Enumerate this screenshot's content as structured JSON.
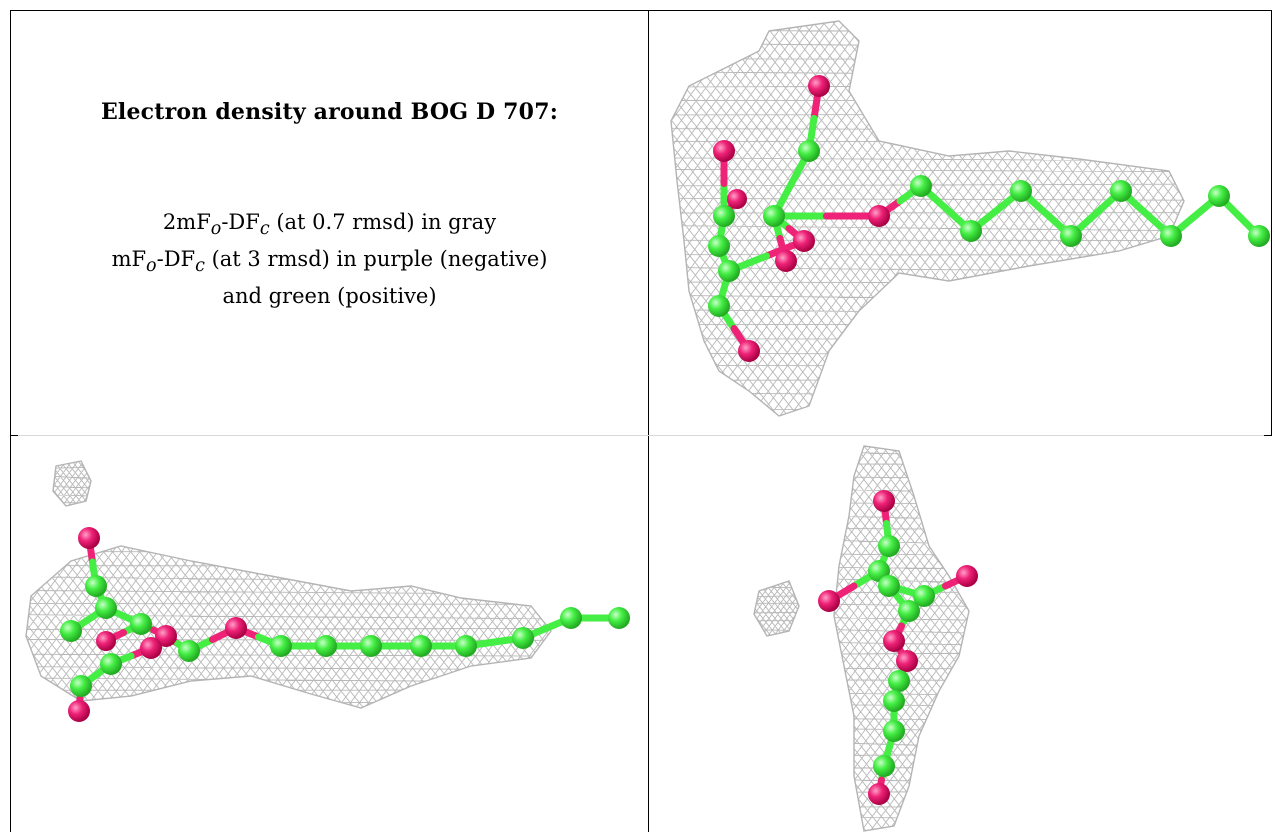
{
  "text_panel": {
    "title": "Electron density around BOG D 707:",
    "line1": {
      "prefix": "2mF",
      "sub1": "o",
      "mid": "-DF",
      "sub2": "c",
      "suffix": " (at 0.7 rmsd) in gray"
    },
    "line2": {
      "prefix": "mF",
      "sub1": "o",
      "mid": "-DF",
      "sub2": "c",
      "suffix": " (at 3 rmsd) in purple (negative)"
    },
    "line3": "and green (positive)"
  },
  "colors": {
    "mesh": "#b4b4b4",
    "carbon": "#44ee44",
    "oxygen": "#ee2277",
    "border": "#000000"
  },
  "panels": [
    {
      "name": "view-top-right"
    },
    {
      "name": "view-bottom-left"
    },
    {
      "name": "view-bottom-right"
    }
  ]
}
